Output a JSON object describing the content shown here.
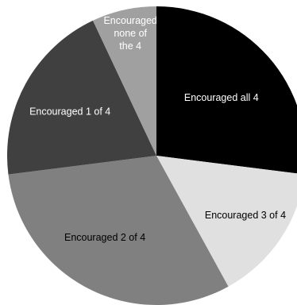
{
  "chart_data": {
    "type": "pie",
    "start_angle_deg": 0,
    "direction": "clockwise",
    "slices": [
      {
        "label": "Encouraged all 4",
        "label_lines": [
          "Encouraged all 4"
        ],
        "value": 27,
        "color": "#000000",
        "text_color": "#ffffff"
      },
      {
        "label": "Encouraged 3 of 4",
        "label_lines": [
          "Encouraged 3 of 4"
        ],
        "value": 15,
        "color": "#e0e0e0",
        "text_color": "#000000"
      },
      {
        "label": "Encouraged 2 of 4",
        "label_lines": [
          "Encouraged 2 of 4"
        ],
        "value": 31,
        "color": "#808080",
        "text_color": "#000000"
      },
      {
        "label": "Encouraged 1 of 4",
        "label_lines": [
          "Encouraged 1 of 4"
        ],
        "value": 20,
        "color": "#404040",
        "text_color": "#ffffff"
      },
      {
        "label": "Encouraged none of the 4",
        "label_lines": [
          "Encouraged",
          "none of",
          "the 4"
        ],
        "value": 7,
        "color": "#a0a0a0",
        "text_color": "#ffffff"
      }
    ]
  }
}
